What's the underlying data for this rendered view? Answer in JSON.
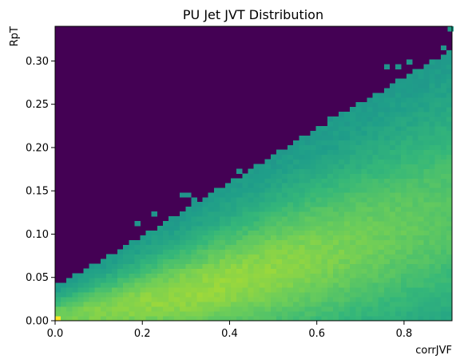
{
  "chart_data": {
    "type": "heatmap",
    "title": "PU Jet JVT Distribution",
    "xlabel": "corrJVF",
    "ylabel": "RpT",
    "xlim": [
      0.0,
      0.91
    ],
    "ylim": [
      0.0,
      0.34
    ],
    "x_ticks": [
      0.0,
      0.2,
      0.4,
      0.6,
      0.8
    ],
    "x_tick_labels": [
      "0.0",
      "0.2",
      "0.4",
      "0.6",
      "0.8"
    ],
    "y_ticks": [
      0.0,
      0.05,
      0.1,
      0.15,
      0.2,
      0.25,
      0.3
    ],
    "y_tick_labels": [
      "0.00",
      "0.05",
      "0.10",
      "0.15",
      "0.20",
      "0.25",
      "0.30"
    ],
    "colormap": "viridis",
    "background_color": "#440154",
    "bins": {
      "nx": 70,
      "ny": 62
    },
    "density_description": "Dense band rising from near (0,0) toward (0.9,0.13); peak near origin (yellow); sparse scattered outliers above, up to ~0.34 at x~0.9",
    "grid": false,
    "legend": "none"
  }
}
